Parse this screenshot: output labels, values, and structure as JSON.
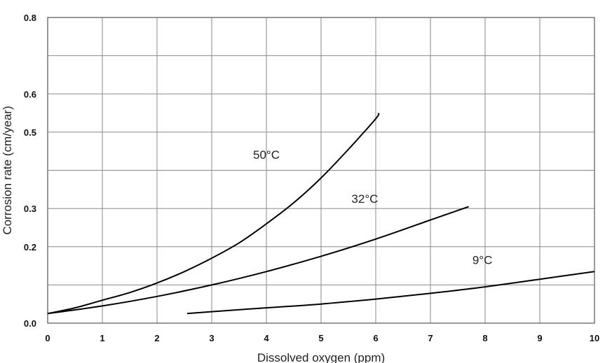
{
  "chart_data": {
    "type": "line",
    "title": "",
    "xlabel": "Dissolved oxygen (ppm)",
    "ylabel": "Corrosion rate (cm/year)",
    "xlim": [
      0,
      10
    ],
    "ylim": [
      0,
      0.8
    ],
    "x_ticks": [
      0,
      1,
      2,
      3,
      4,
      5,
      6,
      7,
      8,
      9,
      10
    ],
    "x_tick_labels": [
      "0",
      "1",
      "2",
      "3",
      "4",
      "5",
      "6",
      "7",
      "8",
      "9",
      "10"
    ],
    "y_ticks": [
      0,
      0.1,
      0.2,
      0.3,
      0.4,
      0.5,
      0.6,
      0.7,
      0.8
    ],
    "y_tick_labels": [
      "0.0",
      "0.2",
      "0.3",
      "0.5",
      "0.6",
      "0.8"
    ],
    "y_tick_label_positions": [
      0,
      0.2,
      0.3,
      0.5,
      0.6,
      0.8
    ],
    "grid": true,
    "legend": "none",
    "series": [
      {
        "name": "50°C",
        "color": "#000000",
        "x": [
          0,
          0.5,
          1,
          1.5,
          2,
          2.5,
          3,
          3.5,
          4,
          4.5,
          5,
          5.5,
          6,
          6.05
        ],
        "y": [
          0.025,
          0.04,
          0.06,
          0.08,
          0.105,
          0.135,
          0.17,
          0.21,
          0.26,
          0.315,
          0.38,
          0.455,
          0.535,
          0.55
        ]
      },
      {
        "name": "32°C",
        "color": "#000000",
        "x": [
          0,
          1,
          2,
          3,
          4,
          5,
          6,
          7,
          7.7
        ],
        "y": [
          0.025,
          0.045,
          0.07,
          0.1,
          0.135,
          0.175,
          0.22,
          0.27,
          0.305
        ]
      },
      {
        "name": "9°C",
        "color": "#000000",
        "x": [
          2.55,
          3,
          4,
          5,
          6,
          7,
          8,
          9,
          10
        ],
        "y": [
          0.025,
          0.03,
          0.04,
          0.05,
          0.063,
          0.078,
          0.095,
          0.115,
          0.135
        ]
      }
    ]
  }
}
